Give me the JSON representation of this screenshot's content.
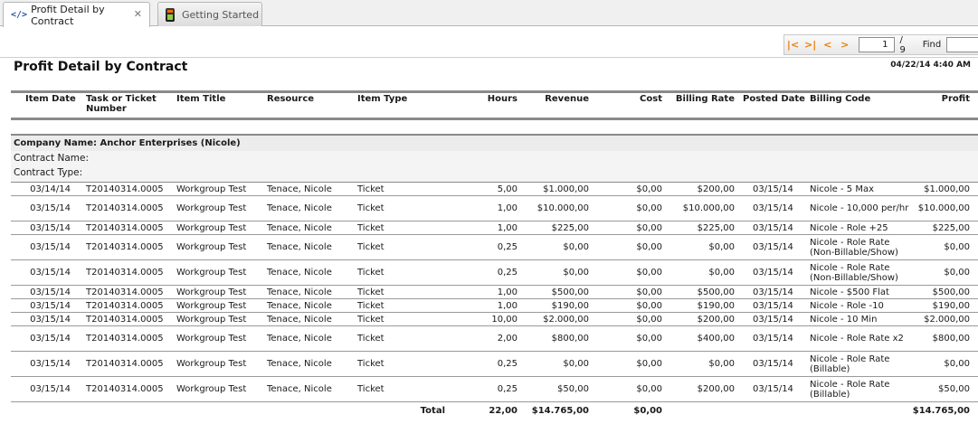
{
  "tabs": [
    {
      "label": "Profit Detail by Contract",
      "icon": "code-icon",
      "active": true
    },
    {
      "label": "Getting Started",
      "icon": "traffic-light-icon",
      "active": false
    }
  ],
  "toolbar": {
    "current_page": "1",
    "total_pages": "/ 9",
    "find_label": "Find",
    "accent": "#f07d00"
  },
  "report": {
    "title": "Profit Detail by Contract",
    "date": "04/22/14 4:40 AM",
    "columns": [
      "Item Date",
      "Task  or Ticket Number",
      "Item Title",
      "Resource",
      "Item Type",
      "Hours",
      "Revenue",
      "Cost",
      "Billing Rate",
      "Posted Date",
      "Billing Code",
      "Profit"
    ],
    "company": "Company Name: Anchor Enterprises (Nicole)",
    "contract_name": "Contract Name:",
    "contract_type": "Contract Type:",
    "rows": [
      [
        "03/14/14",
        "T20140314.0005",
        "Workgroup Test",
        "Tenace, Nicole",
        "Ticket",
        "5,00",
        "$1.000,00",
        "$0,00",
        "$200,00",
        "03/15/14",
        "Nicole - 5 Max",
        "$1.000,00"
      ],
      [
        "03/15/14",
        "T20140314.0005",
        "Workgroup Test",
        "Tenace, Nicole",
        "Ticket",
        "1,00",
        "$10.000,00",
        "$0,00",
        "$10.000,00",
        "03/15/14",
        "Nicole - 10,000 per/hr",
        "$10.000,00"
      ],
      [
        "03/15/14",
        "T20140314.0005",
        "Workgroup Test",
        "Tenace, Nicole",
        "Ticket",
        "1,00",
        "$225,00",
        "$0,00",
        "$225,00",
        "03/15/14",
        "Nicole - Role +25",
        "$225,00"
      ],
      [
        "03/15/14",
        "T20140314.0005",
        "Workgroup Test",
        "Tenace, Nicole",
        "Ticket",
        "0,25",
        "$0,00",
        "$0,00",
        "$0,00",
        "03/15/14",
        "Nicole - Role Rate (Non-Billable/Show)",
        "$0,00"
      ],
      [
        "03/15/14",
        "T20140314.0005",
        "Workgroup Test",
        "Tenace, Nicole",
        "Ticket",
        "0,25",
        "$0,00",
        "$0,00",
        "$0,00",
        "03/15/14",
        "Nicole - Role Rate (Non-Billable/Show)",
        "$0,00"
      ],
      [
        "03/15/14",
        "T20140314.0005",
        "Workgroup Test",
        "Tenace, Nicole",
        "Ticket",
        "1,00",
        "$500,00",
        "$0,00",
        "$500,00",
        "03/15/14",
        "Nicole - $500 Flat",
        "$500,00"
      ],
      [
        "03/15/14",
        "T20140314.0005",
        "Workgroup Test",
        "Tenace, Nicole",
        "Ticket",
        "1,00",
        "$190,00",
        "$0,00",
        "$190,00",
        "03/15/14",
        "Nicole - Role -10",
        "$190,00"
      ],
      [
        "03/15/14",
        "T20140314.0005",
        "Workgroup Test",
        "Tenace, Nicole",
        "Ticket",
        "10,00",
        "$2.000,00",
        "$0,00",
        "$200,00",
        "03/15/14",
        "Nicole - 10 Min",
        "$2.000,00"
      ],
      [
        "03/15/14",
        "T20140314.0005",
        "Workgroup Test",
        "Tenace, Nicole",
        "Ticket",
        "2,00",
        "$800,00",
        "$0,00",
        "$400,00",
        "03/15/14",
        "Nicole - Role Rate x2",
        "$800,00"
      ],
      [
        "03/15/14",
        "T20140314.0005",
        "Workgroup Test",
        "Tenace, Nicole",
        "Ticket",
        "0,25",
        "$0,00",
        "$0,00",
        "$0,00",
        "03/15/14",
        "Nicole - Role Rate (Billable)",
        "$0,00"
      ],
      [
        "03/15/14",
        "T20140314.0005",
        "Workgroup Test",
        "Tenace, Nicole",
        "Ticket",
        "0,25",
        "$50,00",
        "$0,00",
        "$200,00",
        "03/15/14",
        "Nicole - Role Rate (Billable)",
        "$50,00"
      ]
    ],
    "totals": {
      "label": "Total",
      "hours": "22,00",
      "revenue": "$14.765,00",
      "cost": "$0,00",
      "profit": "$14.765,00"
    }
  }
}
